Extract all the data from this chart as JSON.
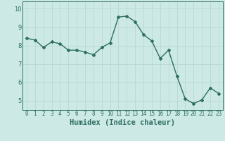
{
  "x": [
    0,
    1,
    2,
    3,
    4,
    5,
    6,
    7,
    8,
    9,
    10,
    11,
    12,
    13,
    14,
    15,
    16,
    17,
    18,
    19,
    20,
    21,
    22,
    23
  ],
  "y": [
    8.4,
    8.3,
    7.9,
    8.2,
    8.1,
    7.75,
    7.75,
    7.65,
    7.5,
    7.9,
    8.15,
    9.55,
    9.6,
    9.3,
    8.6,
    8.25,
    7.3,
    7.75,
    6.35,
    5.1,
    4.85,
    5.05,
    5.7,
    5.4
  ],
  "line_color": "#2e6e63",
  "bg_color": "#cce9e5",
  "grid_color": "#b8d8d4",
  "xlabel": "Humidex (Indice chaleur)",
  "xlabel_fontsize": 7.5,
  "xtick_labels": [
    "0",
    "1",
    "2",
    "3",
    "4",
    "5",
    "6",
    "7",
    "8",
    "9",
    "10",
    "11",
    "12",
    "13",
    "14",
    "15",
    "16",
    "17",
    "18",
    "19",
    "20",
    "21",
    "22",
    "23"
  ],
  "ytick_labels": [
    "5",
    "6",
    "7",
    "8",
    "9",
    "10"
  ],
  "ylim": [
    4.5,
    10.4
  ],
  "xlim": [
    -0.5,
    23.5
  ],
  "marker": "D",
  "marker_size": 2.0,
  "linewidth": 1.0,
  "tick_fontsize": 5.5,
  "ytick_fontsize": 6.0
}
